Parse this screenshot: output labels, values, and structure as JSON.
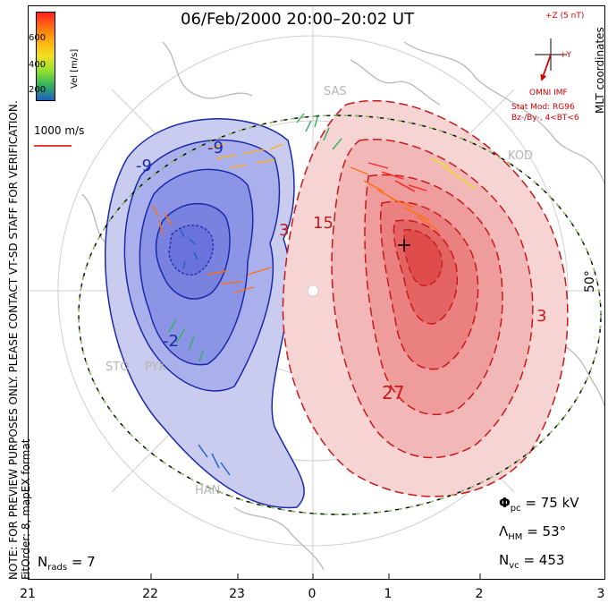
{
  "title": "06/Feb/2000 20:00–20:02 UT",
  "side_note": {
    "line1": "NOTE: FOR PREVIEW PURPOSES ONLY. PLEASE CONTACT VT-SD STAFF FOR VERIFICATION.",
    "line2": "FitOrder: 8, mapEX format"
  },
  "coord_label": "MLT coordinates",
  "colorbar": {
    "title": "Vel [m/s]",
    "ticks": [
      "600",
      "400",
      "200"
    ],
    "colors": [
      "#ff2020",
      "#ff7010",
      "#ffb010",
      "#f0e020",
      "#90e030",
      "#30b060",
      "#2060c0"
    ]
  },
  "scale_label": "1000 m/s",
  "imf": {
    "axis_z": "+Z (5 nT)",
    "axis_y": "+Y",
    "source": "OMNI IMF",
    "model": "Stat Mod: RG96",
    "condition": "Bz-/By-, 4<BT<6"
  },
  "lat_label": "50°",
  "stations": [
    "SAS",
    "KOD",
    "STO",
    "PYK",
    "HAN"
  ],
  "contour_labels": [
    "-9",
    "-9",
    "-2",
    "3",
    "15",
    "27",
    "3"
  ],
  "stats": {
    "phi_pc_label": "Φ",
    "phi_pc_sub": "pc",
    "phi_pc_value": "= 75 kV",
    "lambda_label": "Λ",
    "lambda_sub": "HM",
    "lambda_value": "= 53°",
    "nvc_label": "N",
    "nvc_sub": "vc",
    "nvc_value": "= 453"
  },
  "nrads": {
    "label": "N",
    "sub": "rads",
    "value": "= 7"
  },
  "mlt_ticks": [
    "21",
    "22",
    "23",
    "0",
    "1",
    "2",
    "3"
  ],
  "colors": {
    "negative": "#1a2aa8",
    "positive": "#c81818",
    "boundary": "#90d060"
  }
}
